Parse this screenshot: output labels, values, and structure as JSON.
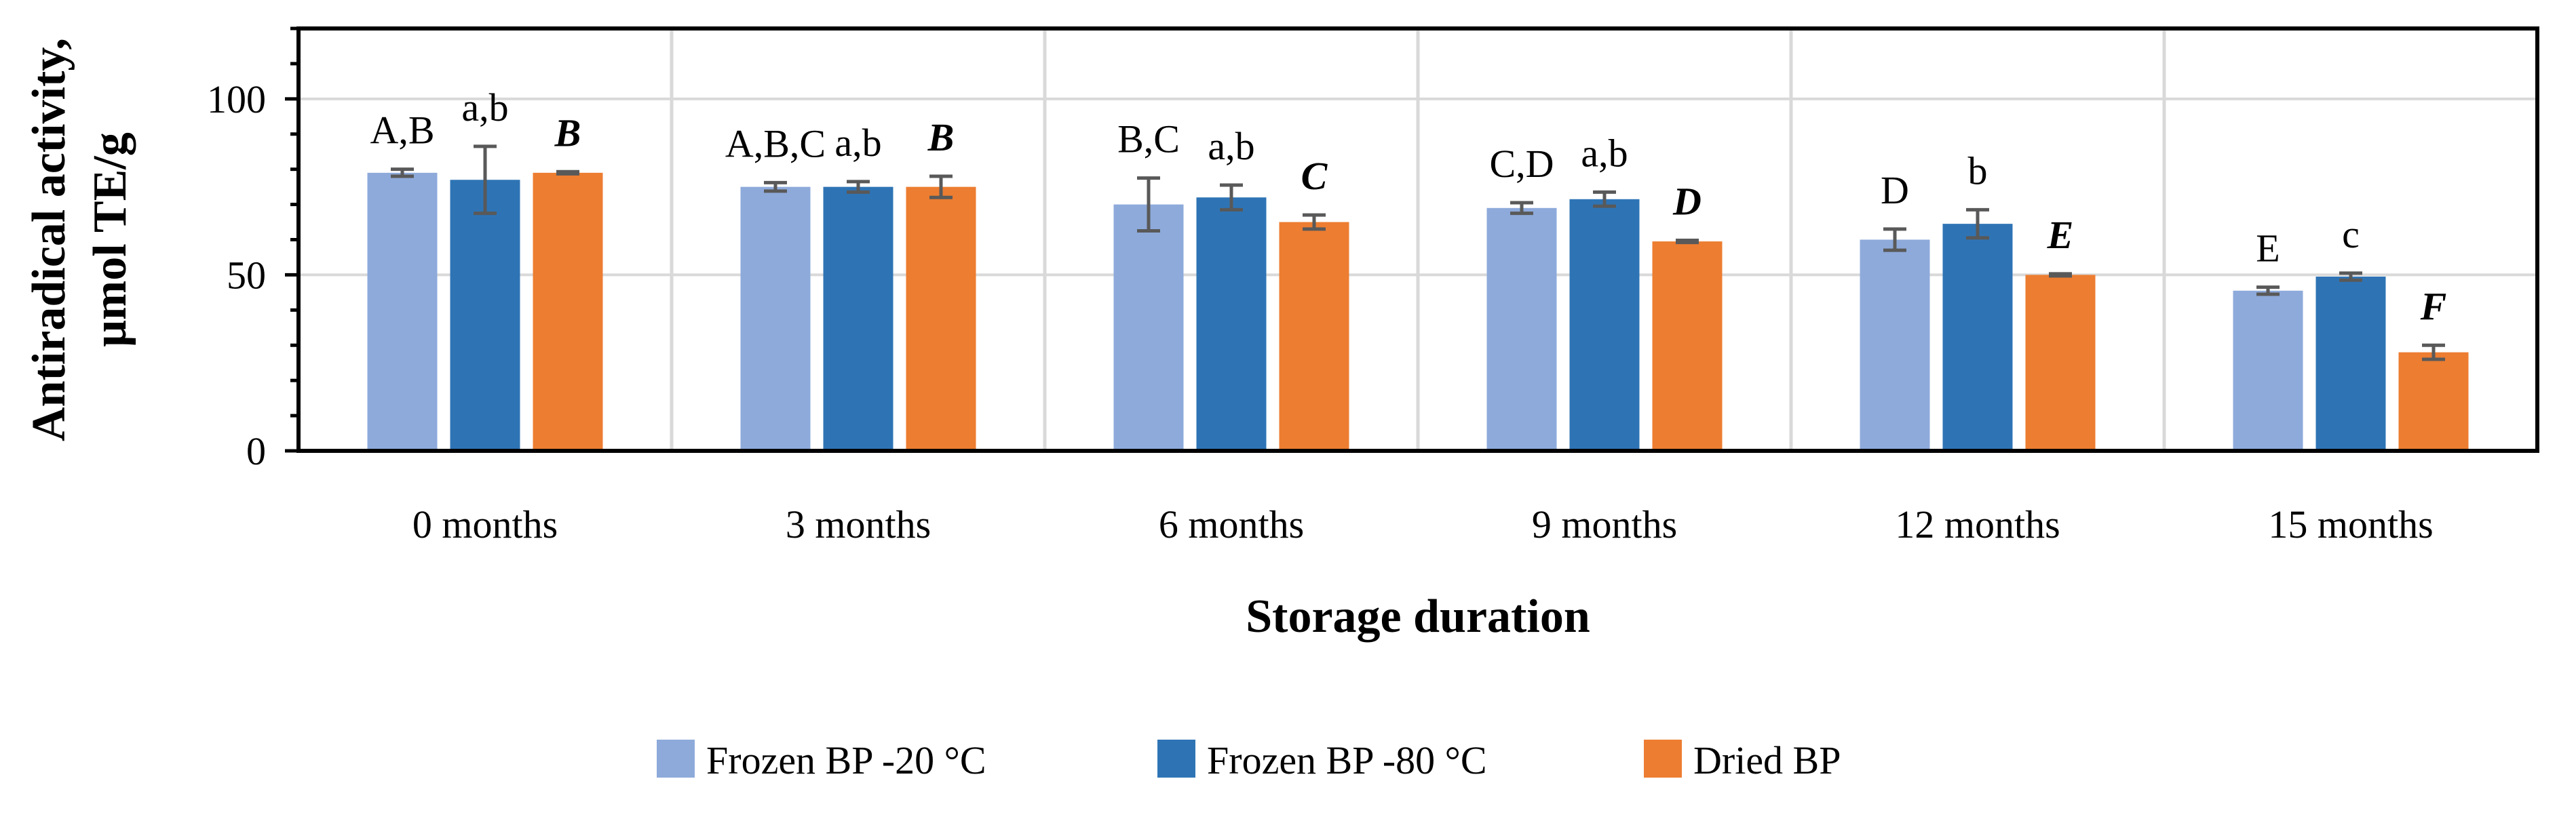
{
  "chart_data": {
    "type": "bar",
    "xlabel": "Storage duration",
    "ylabel_lines": [
      "Antiradical activity,",
      "μmol TE/g"
    ],
    "ylim": [
      0,
      120
    ],
    "yticks": [
      0,
      50,
      100
    ],
    "grid": true,
    "legend_position": "bottom",
    "categories": [
      "0 months",
      "3 months",
      "6 months",
      "9 months",
      "12 months",
      "15 months"
    ],
    "series": [
      {
        "name": "Frozen BP -20 °C",
        "color": "#8eaadb",
        "values": [
          79,
          75,
          70,
          69,
          60,
          45.5
        ],
        "errors": [
          1,
          1.2,
          7.5,
          1.5,
          3,
          1
        ],
        "labels": [
          "A,B",
          "A,B,C",
          "B,C",
          "C,D",
          "D",
          "E"
        ],
        "label_style": "normal"
      },
      {
        "name": "Frozen BP -80 °C",
        "color": "#2e74b5",
        "values": [
          77,
          75,
          72,
          71.5,
          64.5,
          49.5
        ],
        "errors": [
          9.5,
          1.5,
          3.5,
          2,
          4,
          1
        ],
        "labels": [
          "a,b",
          "a,b",
          "a,b",
          "a,b",
          "b",
          "c"
        ],
        "label_style": "normal"
      },
      {
        "name": "Dried BP",
        "color": "#ed7d31",
        "values": [
          79,
          75,
          65,
          59.5,
          50,
          28
        ],
        "errors": [
          0.3,
          3,
          2,
          0.3,
          0.3,
          2
        ],
        "labels": [
          "B",
          "B",
          "C",
          "D",
          "E",
          "F"
        ],
        "label_style": "bold-italic"
      }
    ],
    "error_bar_color": "#595959"
  }
}
